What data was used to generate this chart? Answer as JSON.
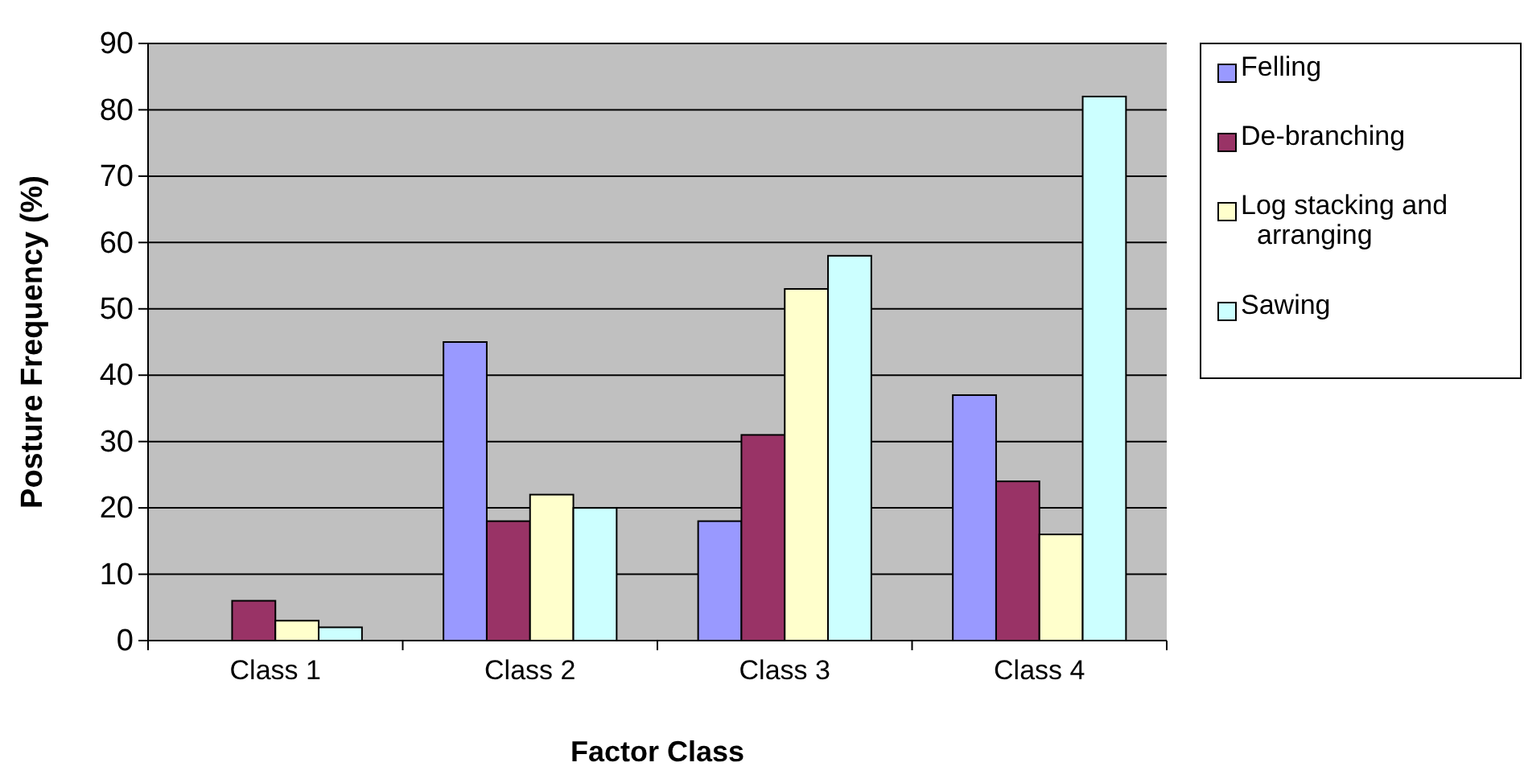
{
  "chart_data": {
    "type": "bar",
    "xlabel": "Factor Class",
    "ylabel": "Posture Frequency (%)",
    "categories": [
      "Class 1",
      "Class 2",
      "Class 3",
      "Class 4"
    ],
    "series": [
      {
        "name": "Felling",
        "color": "#9999ff",
        "values": [
          0,
          45,
          18,
          37
        ]
      },
      {
        "name": "De-branching",
        "color": "#993366",
        "values": [
          6,
          18,
          31,
          24
        ]
      },
      {
        "name": "Log stacking and arranging",
        "color": "#ffffcc",
        "values": [
          3,
          22,
          53,
          16
        ]
      },
      {
        "name": "Sawing",
        "color": "#ccffff",
        "values": [
          2,
          20,
          58,
          82
        ]
      }
    ],
    "ylim": [
      0,
      90
    ],
    "yticks": [
      0,
      10,
      20,
      30,
      40,
      50,
      60,
      70,
      80,
      90
    ],
    "grid": "y",
    "legend": "right"
  }
}
